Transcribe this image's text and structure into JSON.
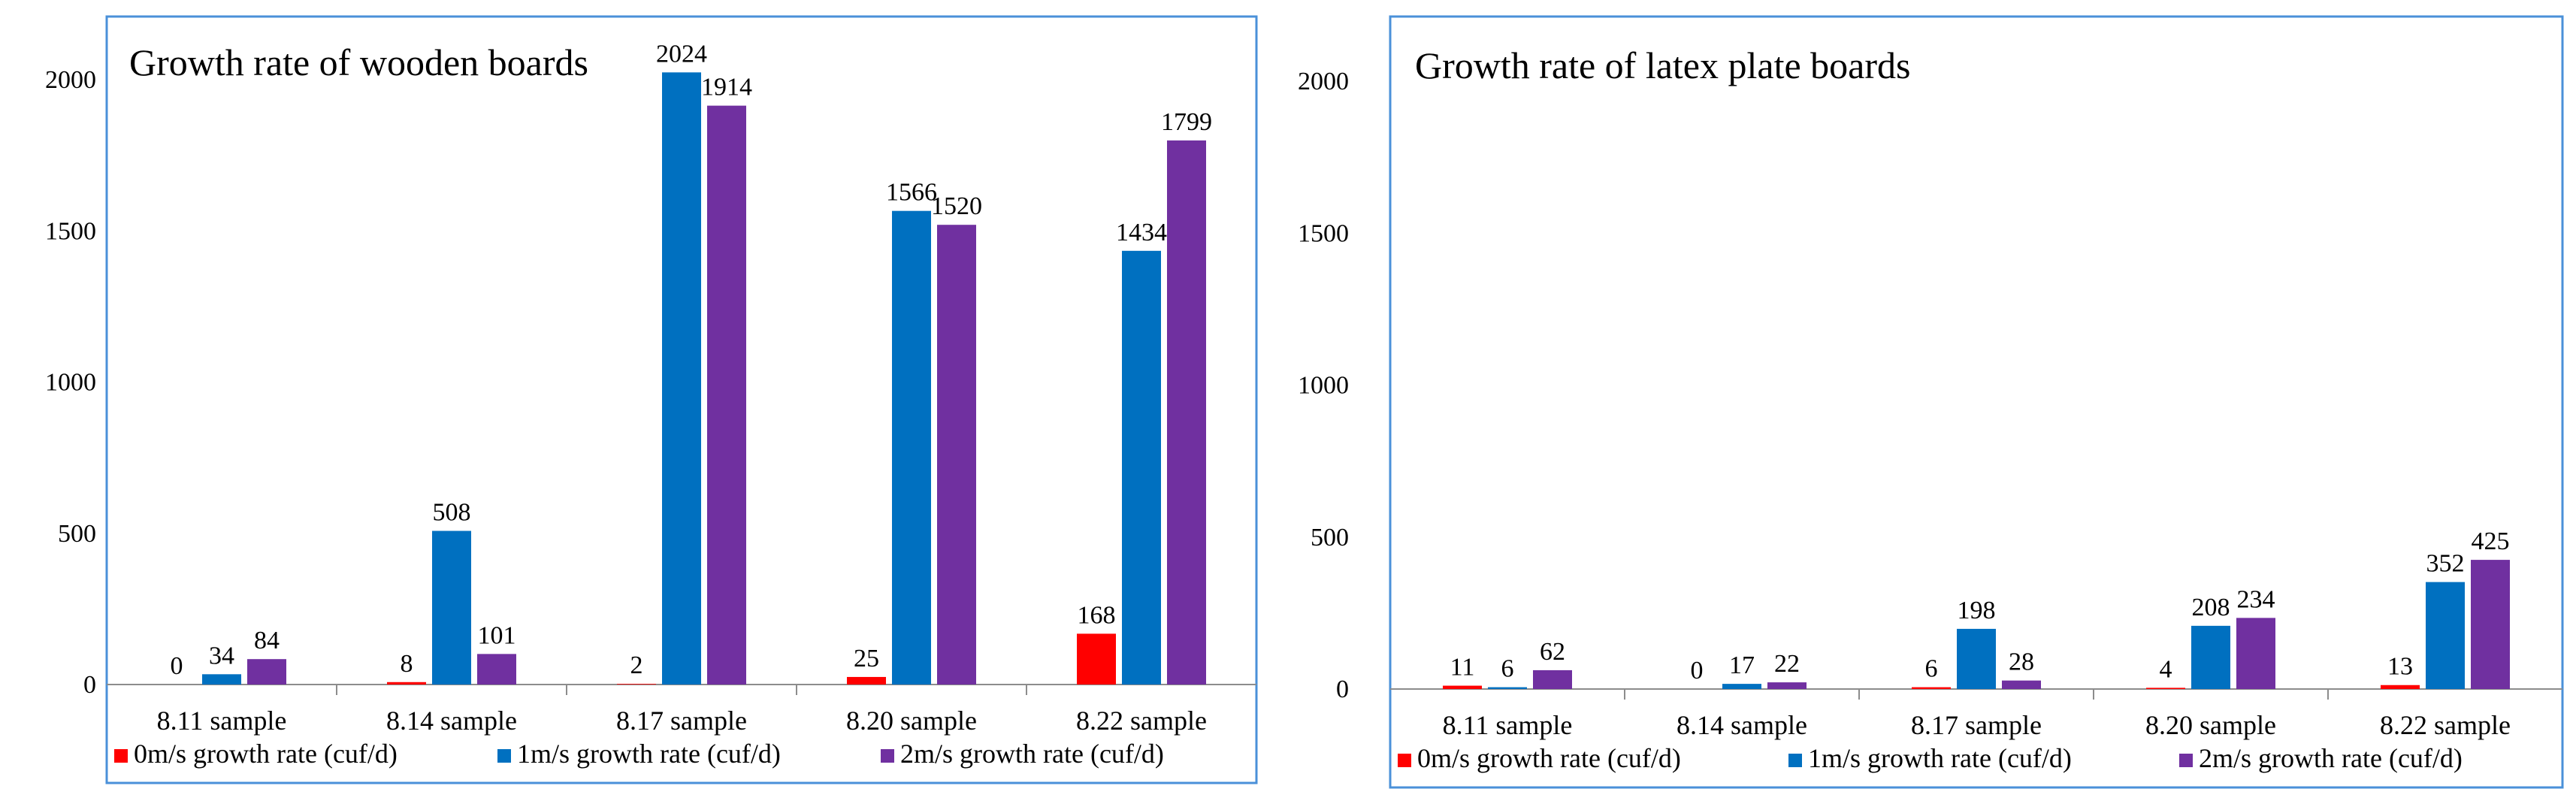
{
  "chart_data": [
    {
      "type": "bar",
      "title": "Growth rate of wooden boards",
      "categories": [
        "8.11  sample",
        "8.14  sample",
        "8.17  sample",
        "8.20  sample",
        "8.22  sample"
      ],
      "series": [
        {
          "name": "0m/s growth rate (cuf/d)",
          "color": "#ff0000",
          "values": [
            0,
            8,
            2,
            25,
            168
          ]
        },
        {
          "name": "1m/s growth rate (cuf/d)",
          "color": "#0070c0",
          "values": [
            34,
            508,
            2024,
            1566,
            1434
          ]
        },
        {
          "name": "2m/s growth rate (cuf/d)",
          "color": "#7030a0",
          "values": [
            84,
            101,
            1914,
            1520,
            1799
          ]
        }
      ],
      "ylim": [
        0,
        2000
      ],
      "yticks": [
        0,
        500,
        1000,
        1500,
        2000
      ],
      "xlabel": "",
      "ylabel": "",
      "legend": "bottom",
      "grid": false
    },
    {
      "type": "bar",
      "title": "Growth rate of latex plate boards",
      "categories": [
        "8.11  sample",
        "8.14  sample",
        "8.17  sample",
        "8.20  sample",
        "8.22  sample"
      ],
      "series": [
        {
          "name": "0m/s growth rate (cuf/d)",
          "color": "#ff0000",
          "values": [
            11,
            0,
            6,
            4,
            13
          ]
        },
        {
          "name": "1m/s growth rate (cuf/d)",
          "color": "#0070c0",
          "values": [
            6,
            17,
            198,
            208,
            352
          ]
        },
        {
          "name": "2m/s growth rate (cuf/d)",
          "color": "#7030a0",
          "values": [
            62,
            22,
            28,
            234,
            425
          ]
        }
      ],
      "ylim": [
        0,
        2000
      ],
      "yticks": [
        0,
        500,
        1000,
        1500,
        2000
      ],
      "xlabel": "",
      "ylabel": "",
      "legend": "bottom",
      "grid": false
    }
  ]
}
